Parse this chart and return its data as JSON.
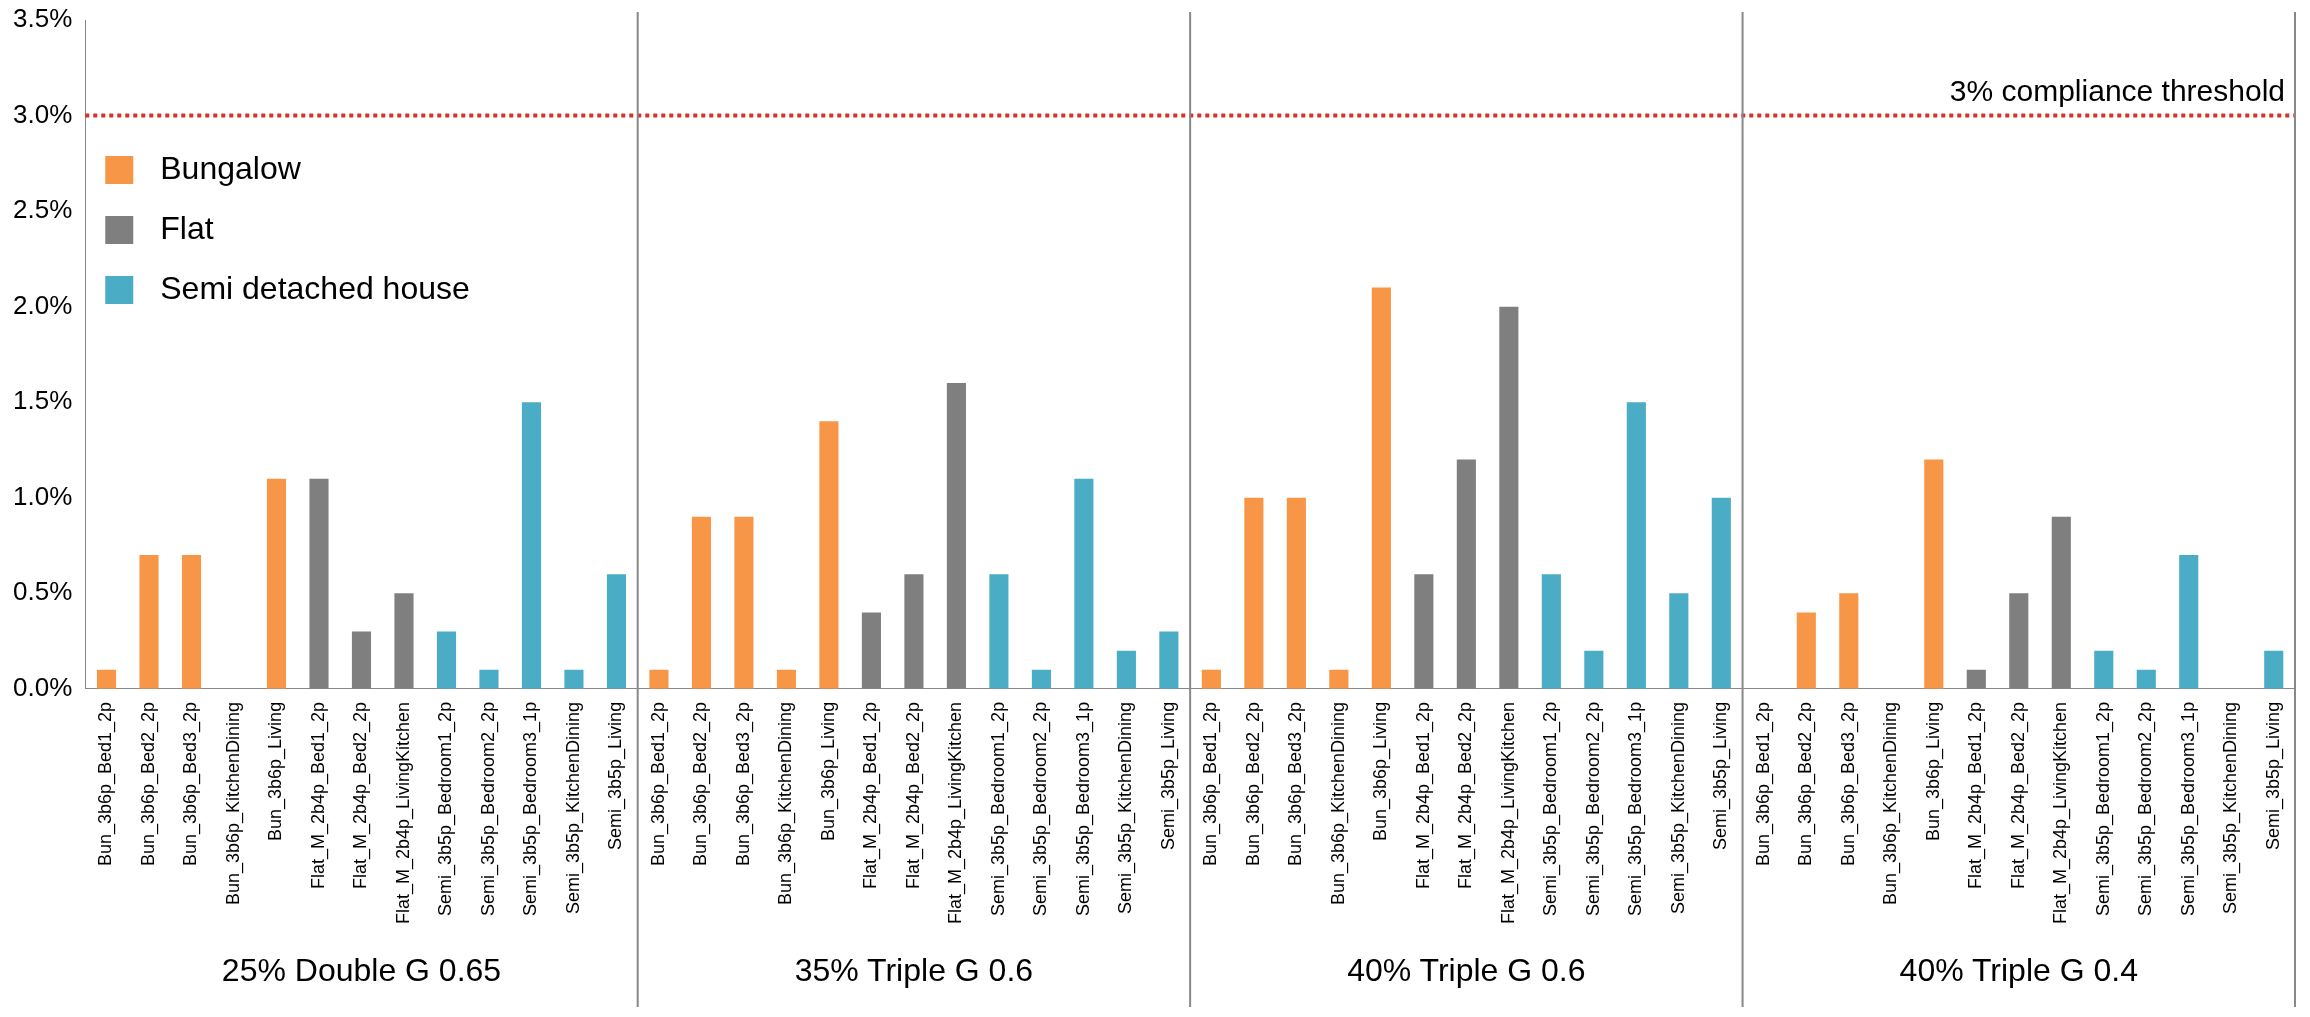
{
  "chart_data": {
    "type": "bar",
    "stacked": true,
    "categories": [
      "Bun_3b6p_Bed1_2p",
      "Bun_3b6p_Bed2_2p",
      "Bun_3b6p_Bed3_2p",
      "Bun_3b6p_KitchenDining",
      "Bun_3b6p_Living",
      "Flat_M_2b4p_Bed1_2p",
      "Flat_M_2b4p_Bed2_2p",
      "Flat_M_2b4p_LivingKitchen",
      "Semi_3b5p_Bedroom1_2p",
      "Semi_3b5p_Bedroom2_2p",
      "Semi_3b5p_Bedroom3_1p",
      "Semi_3b5p_KitchenDining",
      "Semi_3b5p_Living",
      "Bun_3b6p_Bed1_2p",
      "Bun_3b6p_Bed2_2p",
      "Bun_3b6p_Bed3_2p",
      "Bun_3b6p_KitchenDining",
      "Bun_3b6p_Living",
      "Flat_M_2b4p_Bed1_2p",
      "Flat_M_2b4p_Bed2_2p",
      "Flat_M_2b4p_LivingKitchen",
      "Semi_3b5p_Bedroom1_2p",
      "Semi_3b5p_Bedroom2_2p",
      "Semi_3b5p_Bedroom3_1p",
      "Semi_3b5p_KitchenDining",
      "Semi_3b5p_Living",
      "Bun_3b6p_Bed1_2p",
      "Bun_3b6p_Bed2_2p",
      "Bun_3b6p_Bed3_2p",
      "Bun_3b6p_KitchenDining",
      "Bun_3b6p_Living",
      "Flat_M_2b4p_Bed1_2p",
      "Flat_M_2b4p_Bed2_2p",
      "Flat_M_2b4p_LivingKitchen",
      "Semi_3b5p_Bedroom1_2p",
      "Semi_3b5p_Bedroom2_2p",
      "Semi_3b5p_Bedroom3_1p",
      "Semi_3b5p_KitchenDining",
      "Semi_3b5p_Living",
      "Bun_3b6p_Bed1_2p",
      "Bun_3b6p_Bed2_2p",
      "Bun_3b6p_Bed3_2p",
      "Bun_3b6p_KitchenDining",
      "Bun_3b6p_Living",
      "Flat_M_2b4p_Bed1_2p",
      "Flat_M_2b4p_Bed2_2p",
      "Flat_M_2b4p_LivingKitchen",
      "Semi_3b5p_Bedroom1_2p",
      "Semi_3b5p_Bedroom2_2p",
      "Semi_3b5p_Bedroom3_1p",
      "Semi_3b5p_KitchenDining",
      "Semi_3b5p_Living"
    ],
    "series": [
      {
        "name": "Bungalow",
        "color": "#f79646",
        "values": [
          0.1,
          0.7,
          0.7,
          0,
          1.1,
          null,
          null,
          null,
          null,
          null,
          null,
          null,
          null,
          0.1,
          0.9,
          0.9,
          0.1,
          1.4,
          null,
          null,
          null,
          null,
          null,
          null,
          null,
          null,
          0.1,
          1.0,
          1.0,
          0.1,
          2.1,
          null,
          null,
          null,
          null,
          null,
          null,
          null,
          null,
          0,
          0.4,
          0.5,
          0,
          1.2,
          null,
          null,
          null,
          null,
          null,
          null,
          null,
          null
        ]
      },
      {
        "name": "Flat",
        "color": "#7f7f7f",
        "values": [
          null,
          null,
          null,
          null,
          null,
          1.1,
          0.3,
          0.5,
          null,
          null,
          null,
          null,
          null,
          null,
          null,
          null,
          null,
          null,
          0.4,
          0.6,
          1.6,
          null,
          null,
          null,
          null,
          null,
          null,
          null,
          null,
          null,
          null,
          0.6,
          1.2,
          2.0,
          null,
          null,
          null,
          null,
          null,
          null,
          null,
          null,
          null,
          null,
          0.1,
          0.5,
          0.9,
          null,
          null,
          null,
          null,
          null
        ]
      },
      {
        "name": "Semi detached house",
        "color": "#4bacc6",
        "values": [
          null,
          null,
          null,
          null,
          null,
          null,
          null,
          null,
          0.3,
          0.1,
          1.5,
          0.1,
          0.6,
          null,
          null,
          null,
          null,
          null,
          null,
          null,
          null,
          0.6,
          0.1,
          1.1,
          0.2,
          0.3,
          null,
          null,
          null,
          null,
          null,
          null,
          null,
          null,
          0.6,
          0.2,
          1.5,
          0.5,
          1.0,
          null,
          null,
          null,
          null,
          null,
          null,
          null,
          null,
          0.2,
          0.1,
          0.7,
          0,
          0.2
        ]
      }
    ],
    "ylim": [
      0,
      3.5
    ],
    "yticks": [
      {
        "value": 0,
        "label": "0.0%"
      },
      {
        "value": 0.5,
        "label": "0.5%"
      },
      {
        "value": 1,
        "label": "1.0%"
      },
      {
        "value": 1.5,
        "label": "1.5%"
      },
      {
        "value": 2,
        "label": "2.0%"
      },
      {
        "value": 2.5,
        "label": "2.5%"
      },
      {
        "value": 3,
        "label": "3.0%"
      },
      {
        "value": 3.5,
        "label": "3.5%"
      }
    ],
    "ref_lines": [
      {
        "axis": "y",
        "value": 3,
        "label": "3% compliance threshold",
        "color": "#d9302b",
        "line_style": "dotted"
      }
    ],
    "annotations": [
      "25% Double G 0.65",
      "35% Triple G 0.6",
      "40% Triple G 0.6",
      "40% Triple G 0.4"
    ],
    "grid": false,
    "legend": "top left"
  }
}
